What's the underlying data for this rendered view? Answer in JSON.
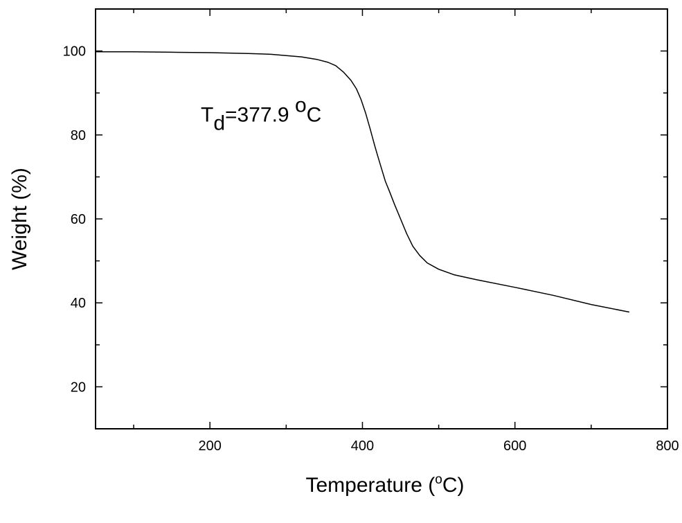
{
  "chart_data": {
    "type": "line",
    "xlabel": "Temperature (",
    "xlabel_sup": "o",
    "xlabel_end": "C)",
    "ylabel": "Weight (%)",
    "xlim": [
      50,
      800
    ],
    "ylim": [
      10,
      110
    ],
    "xticks": [
      200,
      400,
      600,
      800
    ],
    "xtick_labels": [
      "200",
      "400",
      "600",
      "800"
    ],
    "xminor": [
      100,
      300,
      500,
      700
    ],
    "yticks": [
      20,
      40,
      60,
      80,
      100
    ],
    "ytick_labels": [
      "20",
      "40",
      "60",
      "80",
      "100"
    ],
    "yminor": [
      30,
      50,
      70,
      90
    ],
    "grid": false,
    "annotation": {
      "main": "T",
      "sub": "d",
      "rest": "=377.9 ",
      "sup": "o",
      "unit": "C",
      "x": 385,
      "y": 84
    },
    "series": [
      {
        "color": "#000000",
        "x": [
          50,
          100,
          150,
          200,
          250,
          280,
          300,
          320,
          340,
          355,
          365,
          375,
          385,
          392,
          398,
          404,
          410,
          416,
          420,
          425,
          430,
          436,
          442,
          450,
          458,
          466,
          475,
          485,
          500,
          520,
          550,
          600,
          650,
          700,
          750
        ],
        "y": [
          99.8,
          99.8,
          99.7,
          99.6,
          99.4,
          99.2,
          98.9,
          98.6,
          98.0,
          97.3,
          96.5,
          95.0,
          93.0,
          91.0,
          88.5,
          85.3,
          81.5,
          77.5,
          75.0,
          72.0,
          69.0,
          66.3,
          63.5,
          60.0,
          56.5,
          53.5,
          51.3,
          49.5,
          48.0,
          46.7,
          45.5,
          43.7,
          41.8,
          39.6,
          37.8
        ]
      }
    ]
  }
}
